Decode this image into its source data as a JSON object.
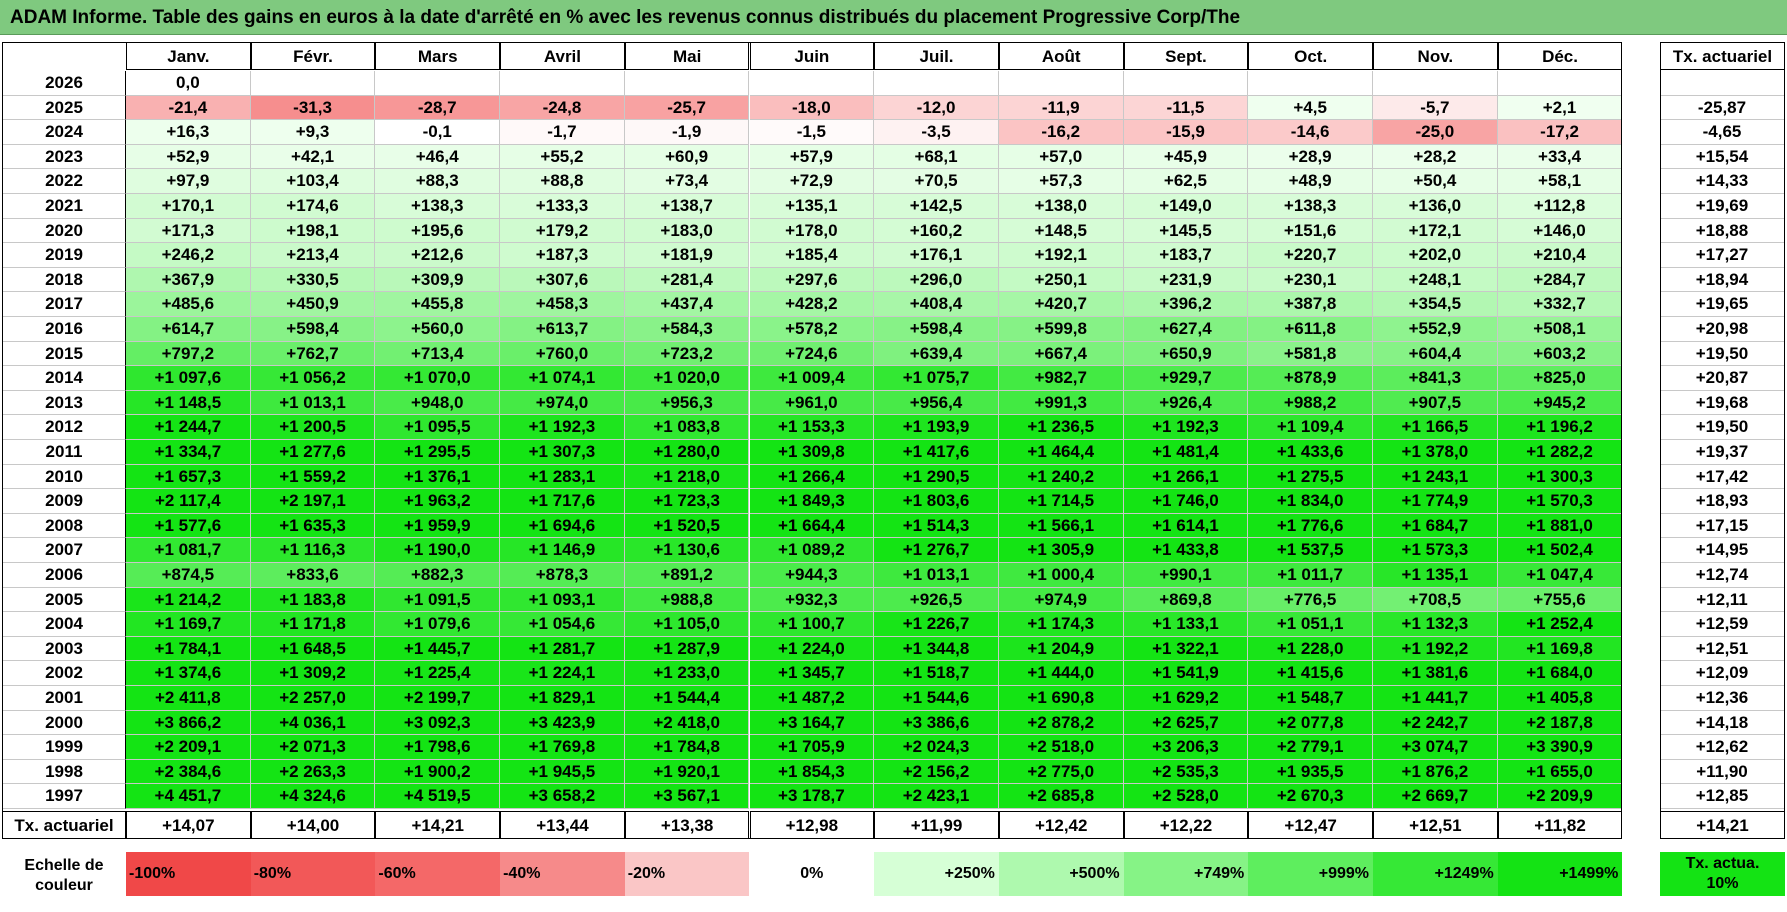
{
  "title": "ADAM Informe. Table des gains en euros à la date d'arrêté en % avec les revenus connus distribués du placement Progressive Corp/The",
  "months": [
    "Janv.",
    "Févr.",
    "Mars",
    "Avril",
    "Mai",
    "Juin",
    "Juil.",
    "Août",
    "Sept.",
    "Oct.",
    "Nov.",
    "Déc."
  ],
  "actuarial_header": "Tx. actuariel",
  "rows": [
    {
      "year": "2026",
      "values": [
        "0,0",
        "",
        "",
        "",
        "",
        "",
        "",
        "",
        "",
        "",
        "",
        ""
      ],
      "rate": ""
    },
    {
      "year": "2025",
      "values": [
        "-21,4",
        "-31,3",
        "-28,7",
        "-24,8",
        "-25,7",
        "-18,0",
        "-12,0",
        "-11,9",
        "-11,5",
        "+4,5",
        "-5,7",
        "+2,1"
      ],
      "rate": "-25,87"
    },
    {
      "year": "2024",
      "values": [
        "+16,3",
        "+9,3",
        "-0,1",
        "-1,7",
        "-1,9",
        "-1,5",
        "-3,5",
        "-16,2",
        "-15,9",
        "-14,6",
        "-25,0",
        "-17,2"
      ],
      "rate": "-4,65"
    },
    {
      "year": "2023",
      "values": [
        "+52,9",
        "+42,1",
        "+46,4",
        "+55,2",
        "+60,9",
        "+57,9",
        "+68,1",
        "+57,0",
        "+45,9",
        "+28,9",
        "+28,2",
        "+33,4"
      ],
      "rate": "+15,54"
    },
    {
      "year": "2022",
      "values": [
        "+97,9",
        "+103,4",
        "+88,3",
        "+88,8",
        "+73,4",
        "+72,9",
        "+70,5",
        "+57,3",
        "+62,5",
        "+48,9",
        "+50,4",
        "+58,1"
      ],
      "rate": "+14,33"
    },
    {
      "year": "2021",
      "values": [
        "+170,1",
        "+174,6",
        "+138,3",
        "+133,3",
        "+138,7",
        "+135,1",
        "+142,5",
        "+138,0",
        "+149,0",
        "+138,3",
        "+136,0",
        "+112,8"
      ],
      "rate": "+19,69"
    },
    {
      "year": "2020",
      "values": [
        "+171,3",
        "+198,1",
        "+195,6",
        "+179,2",
        "+183,0",
        "+178,0",
        "+160,2",
        "+148,5",
        "+145,5",
        "+151,6",
        "+172,1",
        "+146,0"
      ],
      "rate": "+18,88"
    },
    {
      "year": "2019",
      "values": [
        "+246,2",
        "+213,4",
        "+212,6",
        "+187,3",
        "+181,9",
        "+185,4",
        "+176,1",
        "+192,1",
        "+183,7",
        "+220,7",
        "+202,0",
        "+210,4"
      ],
      "rate": "+17,27"
    },
    {
      "year": "2018",
      "values": [
        "+367,9",
        "+330,5",
        "+309,9",
        "+307,6",
        "+281,4",
        "+297,6",
        "+296,0",
        "+250,1",
        "+231,9",
        "+230,1",
        "+248,1",
        "+284,7"
      ],
      "rate": "+18,94"
    },
    {
      "year": "2017",
      "values": [
        "+485,6",
        "+450,9",
        "+455,8",
        "+458,3",
        "+437,4",
        "+428,2",
        "+408,4",
        "+420,7",
        "+396,2",
        "+387,8",
        "+354,5",
        "+332,7"
      ],
      "rate": "+19,65"
    },
    {
      "year": "2016",
      "values": [
        "+614,7",
        "+598,4",
        "+560,0",
        "+613,7",
        "+584,3",
        "+578,2",
        "+598,4",
        "+599,8",
        "+627,4",
        "+611,8",
        "+552,9",
        "+508,1"
      ],
      "rate": "+20,98"
    },
    {
      "year": "2015",
      "values": [
        "+797,2",
        "+762,7",
        "+713,4",
        "+760,0",
        "+723,2",
        "+724,6",
        "+639,4",
        "+667,4",
        "+650,9",
        "+581,8",
        "+604,4",
        "+603,2"
      ],
      "rate": "+19,50"
    },
    {
      "year": "2014",
      "values": [
        "+1 097,6",
        "+1 056,2",
        "+1 070,0",
        "+1 074,1",
        "+1 020,0",
        "+1 009,4",
        "+1 075,7",
        "+982,7",
        "+929,7",
        "+878,9",
        "+841,3",
        "+825,0"
      ],
      "rate": "+20,87"
    },
    {
      "year": "2013",
      "values": [
        "+1 148,5",
        "+1 013,1",
        "+948,0",
        "+974,0",
        "+956,3",
        "+961,0",
        "+956,4",
        "+991,3",
        "+926,4",
        "+988,2",
        "+907,5",
        "+945,2"
      ],
      "rate": "+19,68"
    },
    {
      "year": "2012",
      "values": [
        "+1 244,7",
        "+1 200,5",
        "+1 095,5",
        "+1 192,3",
        "+1 083,8",
        "+1 153,3",
        "+1 193,9",
        "+1 236,5",
        "+1 192,3",
        "+1 109,4",
        "+1 166,5",
        "+1 196,2"
      ],
      "rate": "+19,50"
    },
    {
      "year": "2011",
      "values": [
        "+1 334,7",
        "+1 277,6",
        "+1 295,5",
        "+1 307,3",
        "+1 280,0",
        "+1 309,8",
        "+1 417,6",
        "+1 464,4",
        "+1 481,4",
        "+1 433,6",
        "+1 378,0",
        "+1 282,2"
      ],
      "rate": "+19,37"
    },
    {
      "year": "2010",
      "values": [
        "+1 657,3",
        "+1 559,2",
        "+1 376,1",
        "+1 283,1",
        "+1 218,0",
        "+1 266,4",
        "+1 290,5",
        "+1 240,2",
        "+1 266,1",
        "+1 275,5",
        "+1 243,1",
        "+1 300,3"
      ],
      "rate": "+17,42"
    },
    {
      "year": "2009",
      "values": [
        "+2 117,4",
        "+2 197,1",
        "+1 963,2",
        "+1 717,6",
        "+1 723,3",
        "+1 849,3",
        "+1 803,6",
        "+1 714,5",
        "+1 746,0",
        "+1 834,0",
        "+1 774,9",
        "+1 570,3"
      ],
      "rate": "+18,93"
    },
    {
      "year": "2008",
      "values": [
        "+1 577,6",
        "+1 635,3",
        "+1 959,9",
        "+1 694,6",
        "+1 520,5",
        "+1 664,4",
        "+1 514,3",
        "+1 566,1",
        "+1 614,1",
        "+1 776,6",
        "+1 684,7",
        "+1 881,0"
      ],
      "rate": "+17,15"
    },
    {
      "year": "2007",
      "values": [
        "+1 081,7",
        "+1 116,3",
        "+1 190,0",
        "+1 146,9",
        "+1 130,6",
        "+1 089,2",
        "+1 276,7",
        "+1 305,9",
        "+1 433,8",
        "+1 537,5",
        "+1 573,3",
        "+1 502,4"
      ],
      "rate": "+14,95"
    },
    {
      "year": "2006",
      "values": [
        "+874,5",
        "+833,6",
        "+882,3",
        "+878,3",
        "+891,2",
        "+944,3",
        "+1 013,1",
        "+1 000,4",
        "+990,1",
        "+1 011,7",
        "+1 135,1",
        "+1 047,4"
      ],
      "rate": "+12,74"
    },
    {
      "year": "2005",
      "values": [
        "+1 214,2",
        "+1 183,8",
        "+1 091,5",
        "+1 093,1",
        "+988,8",
        "+932,3",
        "+926,5",
        "+974,9",
        "+869,8",
        "+776,5",
        "+708,5",
        "+755,6"
      ],
      "rate": "+12,11"
    },
    {
      "year": "2004",
      "values": [
        "+1 169,7",
        "+1 171,8",
        "+1 079,6",
        "+1 054,6",
        "+1 105,0",
        "+1 100,7",
        "+1 226,7",
        "+1 174,3",
        "+1 133,1",
        "+1 051,1",
        "+1 132,3",
        "+1 252,4"
      ],
      "rate": "+12,59"
    },
    {
      "year": "2003",
      "values": [
        "+1 784,1",
        "+1 648,5",
        "+1 445,7",
        "+1 281,7",
        "+1 287,9",
        "+1 224,0",
        "+1 344,8",
        "+1 204,9",
        "+1 322,1",
        "+1 228,0",
        "+1 192,2",
        "+1 169,8"
      ],
      "rate": "+12,51"
    },
    {
      "year": "2002",
      "values": [
        "+1 374,6",
        "+1 309,2",
        "+1 225,4",
        "+1 224,1",
        "+1 233,0",
        "+1 345,7",
        "+1 518,7",
        "+1 444,0",
        "+1 541,9",
        "+1 415,6",
        "+1 381,6",
        "+1 684,0"
      ],
      "rate": "+12,09"
    },
    {
      "year": "2001",
      "values": [
        "+2 411,8",
        "+2 257,0",
        "+2 199,7",
        "+1 829,1",
        "+1 544,4",
        "+1 487,2",
        "+1 544,6",
        "+1 690,8",
        "+1 629,2",
        "+1 548,7",
        "+1 441,7",
        "+1 405,8"
      ],
      "rate": "+12,36"
    },
    {
      "year": "2000",
      "values": [
        "+3 866,2",
        "+4 036,1",
        "+3 092,3",
        "+3 423,9",
        "+2 418,0",
        "+3 164,7",
        "+3 386,6",
        "+2 878,2",
        "+2 625,7",
        "+2 077,8",
        "+2 242,7",
        "+2 187,8"
      ],
      "rate": "+14,18"
    },
    {
      "year": "1999",
      "values": [
        "+2 209,1",
        "+2 071,3",
        "+1 798,6",
        "+1 769,8",
        "+1 784,8",
        "+1 705,9",
        "+2 024,3",
        "+2 518,0",
        "+3 206,3",
        "+2 779,1",
        "+3 074,7",
        "+3 390,9"
      ],
      "rate": "+12,62"
    },
    {
      "year": "1998",
      "values": [
        "+2 384,6",
        "+2 263,3",
        "+1 900,2",
        "+1 945,5",
        "+1 920,1",
        "+1 854,3",
        "+2 156,2",
        "+2 775,0",
        "+2 535,3",
        "+1 935,5",
        "+1 876,2",
        "+1 655,0"
      ],
      "rate": "+11,90"
    },
    {
      "year": "1997",
      "values": [
        "+4 451,7",
        "+4 324,6",
        "+4 519,5",
        "+3 658,2",
        "+3 567,1",
        "+3 178,7",
        "+2 423,1",
        "+2 685,8",
        "+2 528,0",
        "+2 670,3",
        "+2 669,7",
        "+2 209,9"
      ],
      "rate": "+12,85"
    }
  ],
  "footer_row": {
    "label": "Tx. actuariel",
    "values": [
      "+14,07",
      "+14,00",
      "+14,21",
      "+13,44",
      "+13,38",
      "+12,98",
      "+11,99",
      "+12,42",
      "+12,22",
      "+12,47",
      "+12,51",
      "+11,82"
    ],
    "total": "+14,21"
  },
  "legend": {
    "label": "Echelle de couleur",
    "swatches": [
      {
        "label": "-100%",
        "color": "#f04848",
        "align": "left"
      },
      {
        "label": "-80%",
        "color": "#f25858",
        "align": "left"
      },
      {
        "label": "-60%",
        "color": "#f46868",
        "align": "left"
      },
      {
        "label": "-40%",
        "color": "#f68a8a",
        "align": "left"
      },
      {
        "label": "-20%",
        "color": "#fac6c6",
        "align": "left"
      },
      {
        "label": "0%",
        "color": "#ffffff",
        "align": "center"
      },
      {
        "label": "+250%",
        "color": "#d6ffd6",
        "align": "right"
      },
      {
        "label": "+500%",
        "color": "#aef9ae",
        "align": "right"
      },
      {
        "label": "+749%",
        "color": "#86f386",
        "align": "right"
      },
      {
        "label": "+999%",
        "color": "#5eee5e",
        "align": "right"
      },
      {
        "label": "+1249%",
        "color": "#36e836",
        "align": "right"
      },
      {
        "label": "+1499%",
        "color": "#14e314",
        "align": "right"
      }
    ],
    "actuarial_label": "Tx. actua. 10%",
    "actuarial_color": "#14e314"
  }
}
